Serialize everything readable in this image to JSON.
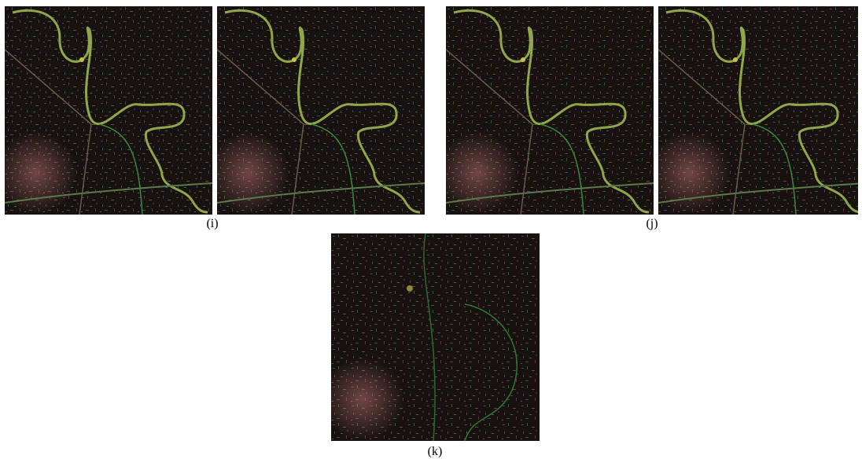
{
  "figure": {
    "captions": [
      "(i)",
      "(j)",
      "(k)"
    ]
  }
}
